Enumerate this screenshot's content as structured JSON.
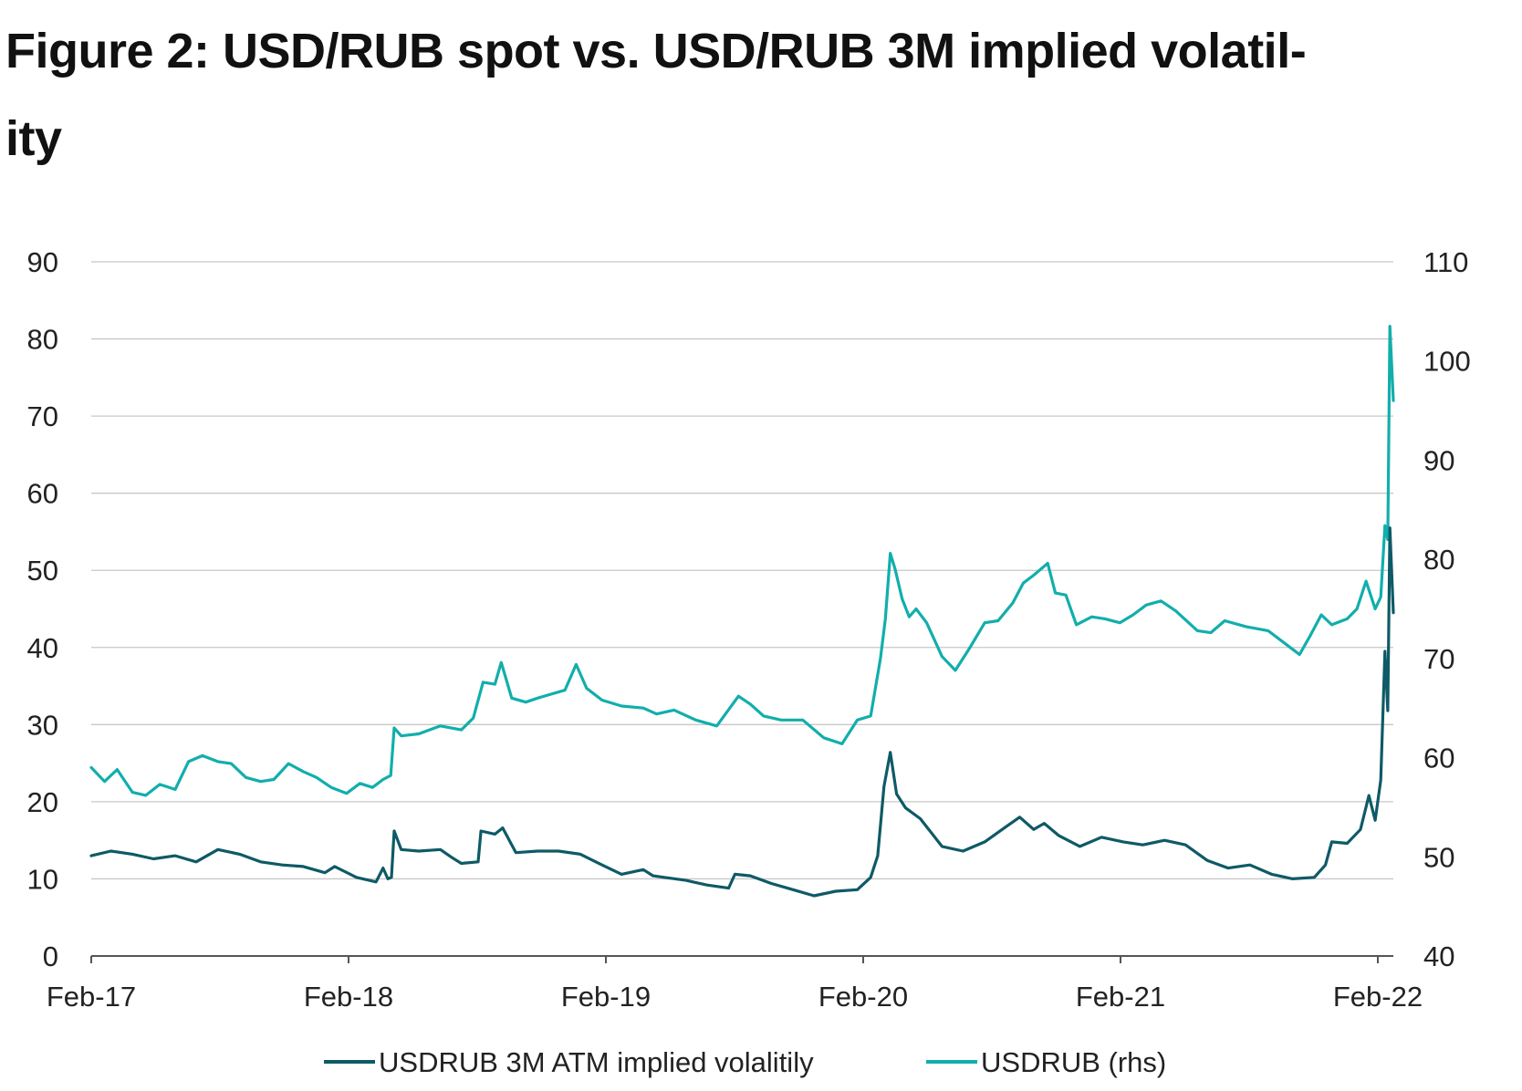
{
  "title": "Figure 2: USD/RUB spot vs. USD/RUB 3M implied volatility",
  "title_line1": "Figure 2: USD/RUB spot vs. USD/RUB 3M implied volatil-",
  "title_line2": "ity",
  "colors": {
    "vol": "#0e5a66",
    "spot": "#12aeac",
    "grid": "#c8c8c8",
    "axis": "#555555"
  },
  "chart_data": {
    "type": "line",
    "title": "Figure 2: USD/RUB spot vs. USD/RUB 3M implied volatility",
    "x_range": [
      "2017-02-01",
      "2022-03-08"
    ],
    "x_tick_labels": [
      "Feb-17",
      "Feb-18",
      "Feb-19",
      "Feb-20",
      "Feb-21",
      "Feb-22"
    ],
    "y_left": {
      "range": [
        0,
        90
      ],
      "ticks": [
        "0",
        "10",
        "20",
        "30",
        "40",
        "50",
        "60",
        "70",
        "80",
        "90"
      ]
    },
    "y_right": {
      "range": [
        40,
        110
      ],
      "ticks": [
        "40",
        "50",
        "60",
        "70",
        "80",
        "90",
        "100",
        "110"
      ]
    },
    "grid": true,
    "legend_position": "bottom",
    "series": [
      {
        "name": "USDRUB 3M ATM implied volalitily",
        "axis": "left",
        "color": "#0e5a66",
        "points": [
          [
            "2017-02-01",
            13.0
          ],
          [
            "2017-03-01",
            13.6
          ],
          [
            "2017-04-01",
            13.2
          ],
          [
            "2017-05-01",
            12.6
          ],
          [
            "2017-06-01",
            13.0
          ],
          [
            "2017-07-01",
            12.2
          ],
          [
            "2017-08-01",
            13.8
          ],
          [
            "2017-09-01",
            13.2
          ],
          [
            "2017-10-01",
            12.2
          ],
          [
            "2017-11-01",
            11.8
          ],
          [
            "2017-12-01",
            11.6
          ],
          [
            "2018-01-01",
            10.8
          ],
          [
            "2018-01-15",
            11.6
          ],
          [
            "2018-02-15",
            10.2
          ],
          [
            "2018-03-15",
            9.6
          ],
          [
            "2018-03-25",
            11.4
          ],
          [
            "2018-04-01",
            10.0
          ],
          [
            "2018-04-06",
            10.2
          ],
          [
            "2018-04-10",
            16.2
          ],
          [
            "2018-04-20",
            13.8
          ],
          [
            "2018-05-15",
            13.6
          ],
          [
            "2018-06-15",
            13.8
          ],
          [
            "2018-07-01",
            12.8
          ],
          [
            "2018-07-15",
            12.0
          ],
          [
            "2018-08-08",
            12.2
          ],
          [
            "2018-08-12",
            16.2
          ],
          [
            "2018-09-01",
            15.8
          ],
          [
            "2018-09-12",
            16.6
          ],
          [
            "2018-10-01",
            13.4
          ],
          [
            "2018-11-01",
            13.6
          ],
          [
            "2018-12-01",
            13.6
          ],
          [
            "2019-01-01",
            13.2
          ],
          [
            "2019-02-01",
            11.8
          ],
          [
            "2019-03-01",
            10.6
          ],
          [
            "2019-04-01",
            11.2
          ],
          [
            "2019-04-15",
            10.4
          ],
          [
            "2019-05-01",
            10.2
          ],
          [
            "2019-06-01",
            9.8
          ],
          [
            "2019-07-01",
            9.2
          ],
          [
            "2019-08-01",
            8.8
          ],
          [
            "2019-08-10",
            10.6
          ],
          [
            "2019-09-01",
            10.4
          ],
          [
            "2019-10-01",
            9.4
          ],
          [
            "2019-11-01",
            8.6
          ],
          [
            "2019-12-01",
            7.8
          ],
          [
            "2020-01-01",
            8.4
          ],
          [
            "2020-02-01",
            8.6
          ],
          [
            "2020-02-20",
            10.2
          ],
          [
            "2020-03-01",
            13.0
          ],
          [
            "2020-03-10",
            22.0
          ],
          [
            "2020-03-19",
            26.4
          ],
          [
            "2020-03-28",
            21.0
          ],
          [
            "2020-04-10",
            19.2
          ],
          [
            "2020-05-01",
            17.8
          ],
          [
            "2020-06-01",
            14.2
          ],
          [
            "2020-07-01",
            13.6
          ],
          [
            "2020-08-01",
            14.8
          ],
          [
            "2020-09-01",
            16.8
          ],
          [
            "2020-09-20",
            18.0
          ],
          [
            "2020-10-10",
            16.4
          ],
          [
            "2020-10-25",
            17.2
          ],
          [
            "2020-11-15",
            15.6
          ],
          [
            "2020-12-15",
            14.2
          ],
          [
            "2021-01-15",
            15.4
          ],
          [
            "2021-02-15",
            14.8
          ],
          [
            "2021-03-15",
            14.4
          ],
          [
            "2021-04-15",
            15.0
          ],
          [
            "2021-05-15",
            14.4
          ],
          [
            "2021-06-15",
            12.4
          ],
          [
            "2021-07-15",
            11.4
          ],
          [
            "2021-08-15",
            11.8
          ],
          [
            "2021-09-15",
            10.6
          ],
          [
            "2021-10-15",
            10.0
          ],
          [
            "2021-11-15",
            10.2
          ],
          [
            "2021-12-01",
            11.8
          ],
          [
            "2021-12-10",
            14.8
          ],
          [
            "2022-01-01",
            14.6
          ],
          [
            "2022-01-20",
            16.4
          ],
          [
            "2022-02-01",
            20.8
          ],
          [
            "2022-02-10",
            17.6
          ],
          [
            "2022-02-18",
            22.8
          ],
          [
            "2022-02-24",
            39.5
          ],
          [
            "2022-02-28",
            31.8
          ],
          [
            "2022-03-03",
            55.5
          ],
          [
            "2022-03-08",
            44.5
          ]
        ]
      },
      {
        "name": "USDRUB (rhs)",
        "axis": "right",
        "color": "#12aeac",
        "points": [
          [
            "2017-02-01",
            59.0
          ],
          [
            "2017-02-20",
            57.6
          ],
          [
            "2017-03-10",
            58.8
          ],
          [
            "2017-04-01",
            56.5
          ],
          [
            "2017-04-20",
            56.2
          ],
          [
            "2017-05-10",
            57.3
          ],
          [
            "2017-06-01",
            56.8
          ],
          [
            "2017-06-20",
            59.6
          ],
          [
            "2017-07-10",
            60.2
          ],
          [
            "2017-08-01",
            59.6
          ],
          [
            "2017-08-20",
            59.4
          ],
          [
            "2017-09-10",
            58.0
          ],
          [
            "2017-10-01",
            57.6
          ],
          [
            "2017-10-20",
            57.8
          ],
          [
            "2017-11-10",
            59.4
          ],
          [
            "2017-12-01",
            58.6
          ],
          [
            "2017-12-20",
            58.0
          ],
          [
            "2018-01-10",
            57.0
          ],
          [
            "2018-02-01",
            56.4
          ],
          [
            "2018-02-20",
            57.4
          ],
          [
            "2018-03-10",
            57.0
          ],
          [
            "2018-03-25",
            57.8
          ],
          [
            "2018-04-05",
            58.2
          ],
          [
            "2018-04-10",
            63.0
          ],
          [
            "2018-04-20",
            62.2
          ],
          [
            "2018-05-15",
            62.4
          ],
          [
            "2018-06-15",
            63.2
          ],
          [
            "2018-07-15",
            62.8
          ],
          [
            "2018-08-01",
            64.0
          ],
          [
            "2018-08-15",
            67.6
          ],
          [
            "2018-09-01",
            67.4
          ],
          [
            "2018-09-10",
            69.6
          ],
          [
            "2018-09-25",
            66.0
          ],
          [
            "2018-10-15",
            65.6
          ],
          [
            "2018-11-01",
            66.0
          ],
          [
            "2018-11-20",
            66.4
          ],
          [
            "2018-12-10",
            66.8
          ],
          [
            "2018-12-26",
            69.4
          ],
          [
            "2019-01-10",
            67.0
          ],
          [
            "2019-02-01",
            65.8
          ],
          [
            "2019-03-01",
            65.2
          ],
          [
            "2019-04-01",
            65.0
          ],
          [
            "2019-04-20",
            64.4
          ],
          [
            "2019-05-15",
            64.8
          ],
          [
            "2019-06-15",
            63.8
          ],
          [
            "2019-07-15",
            63.2
          ],
          [
            "2019-08-15",
            66.2
          ],
          [
            "2019-09-01",
            65.4
          ],
          [
            "2019-09-20",
            64.2
          ],
          [
            "2019-10-15",
            63.8
          ],
          [
            "2019-11-15",
            63.8
          ],
          [
            "2019-12-15",
            62.0
          ],
          [
            "2020-01-10",
            61.4
          ],
          [
            "2020-02-01",
            63.8
          ],
          [
            "2020-02-20",
            64.2
          ],
          [
            "2020-03-05",
            70.0
          ],
          [
            "2020-03-12",
            74.0
          ],
          [
            "2020-03-19",
            80.6
          ],
          [
            "2020-03-26",
            79.0
          ],
          [
            "2020-04-05",
            76.0
          ],
          [
            "2020-04-15",
            74.2
          ],
          [
            "2020-04-25",
            75.0
          ],
          [
            "2020-05-10",
            73.6
          ],
          [
            "2020-06-01",
            70.2
          ],
          [
            "2020-06-20",
            68.8
          ],
          [
            "2020-07-10",
            71.0
          ],
          [
            "2020-08-01",
            73.6
          ],
          [
            "2020-08-20",
            73.8
          ],
          [
            "2020-09-10",
            75.6
          ],
          [
            "2020-09-25",
            77.6
          ],
          [
            "2020-10-10",
            78.4
          ],
          [
            "2020-10-30",
            79.6
          ],
          [
            "2020-11-10",
            76.6
          ],
          [
            "2020-11-25",
            76.4
          ],
          [
            "2020-12-10",
            73.4
          ],
          [
            "2021-01-01",
            74.2
          ],
          [
            "2021-01-20",
            74.0
          ],
          [
            "2021-02-10",
            73.6
          ],
          [
            "2021-03-01",
            74.4
          ],
          [
            "2021-03-20",
            75.4
          ],
          [
            "2021-04-10",
            75.8
          ],
          [
            "2021-05-01",
            74.8
          ],
          [
            "2021-06-01",
            72.8
          ],
          [
            "2021-06-20",
            72.6
          ],
          [
            "2021-07-10",
            73.8
          ],
          [
            "2021-08-10",
            73.2
          ],
          [
            "2021-09-10",
            72.8
          ],
          [
            "2021-10-10",
            71.2
          ],
          [
            "2021-10-25",
            70.4
          ],
          [
            "2021-11-10",
            72.4
          ],
          [
            "2021-11-25",
            74.4
          ],
          [
            "2021-12-10",
            73.4
          ],
          [
            "2022-01-01",
            74.0
          ],
          [
            "2022-01-15",
            75.0
          ],
          [
            "2022-01-28",
            77.8
          ],
          [
            "2022-02-10",
            75.0
          ],
          [
            "2022-02-18",
            76.2
          ],
          [
            "2022-02-24",
            83.4
          ],
          [
            "2022-02-28",
            82.0
          ],
          [
            "2022-03-03",
            103.5
          ],
          [
            "2022-03-08",
            96.0
          ]
        ]
      }
    ]
  }
}
